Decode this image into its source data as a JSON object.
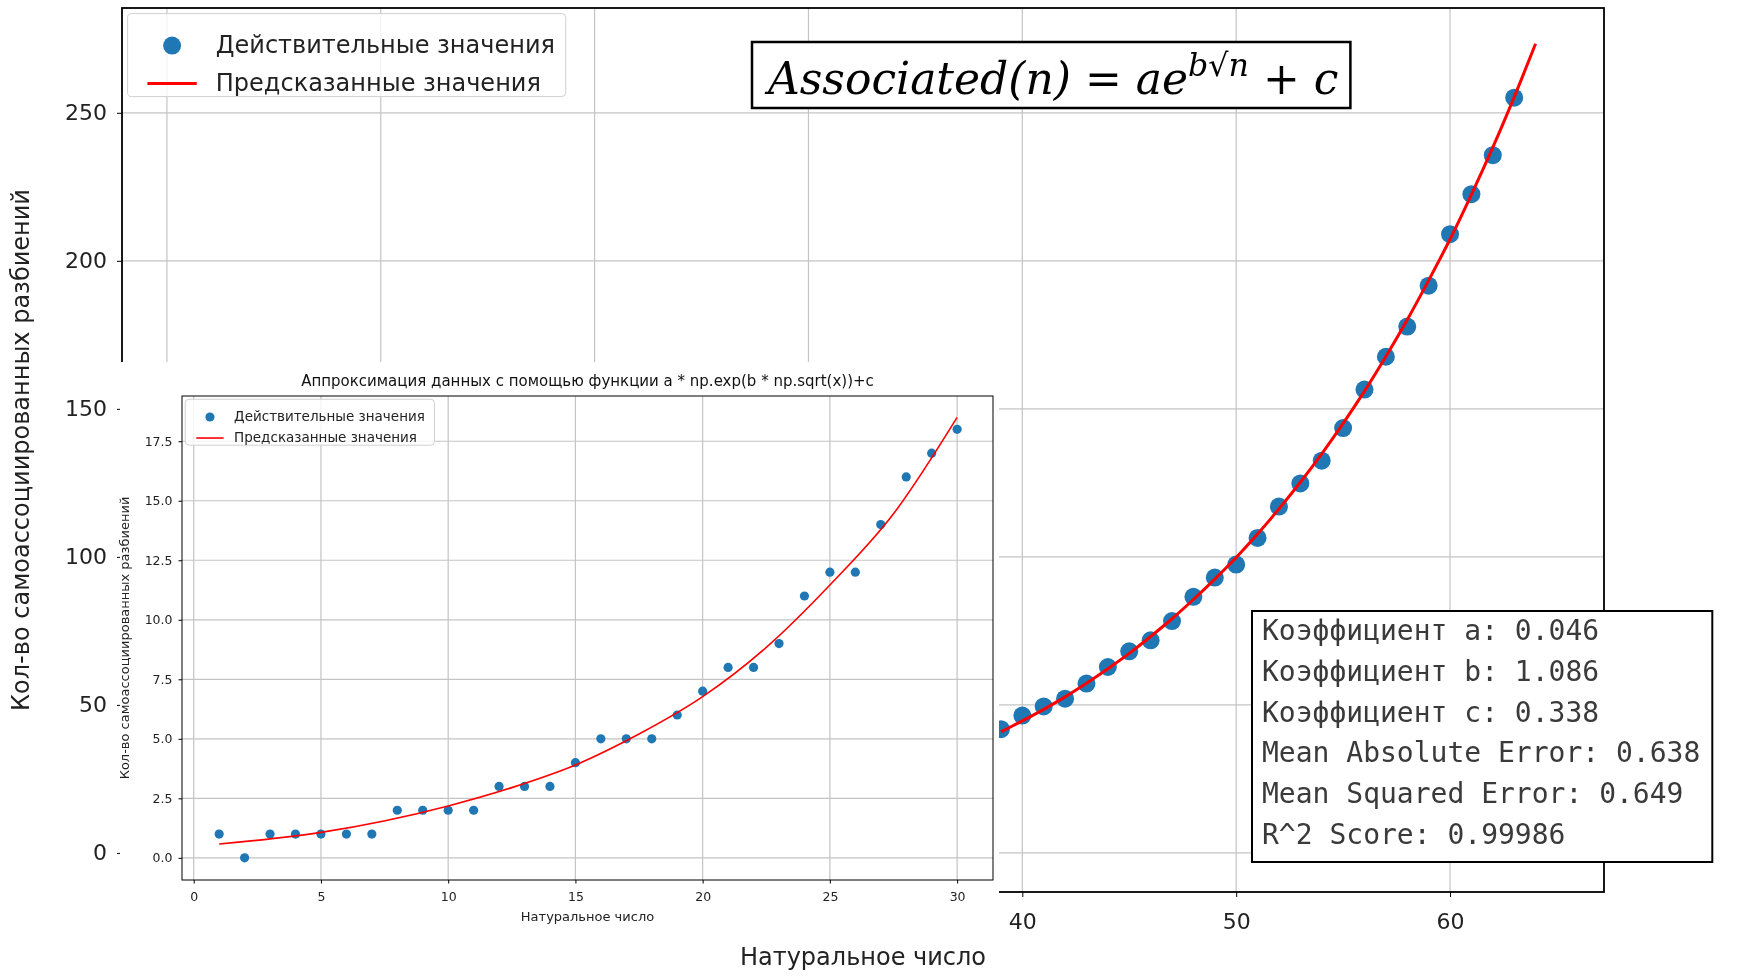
{
  "chart_data": [
    {
      "type": "scatter",
      "xlabel": "Натуральное число",
      "ylabel": "Кол-во самоассоциированных разбиений",
      "xlim": [
        -2.1,
        67.2
      ],
      "ylim": [
        -13.2,
        285.4
      ],
      "xticks": [
        {
          "value": 0,
          "label": null
        },
        {
          "value": 10,
          "label": null
        },
        {
          "value": 20,
          "label": null
        },
        {
          "value": 30,
          "label": null
        },
        40,
        50,
        60
      ],
      "yticks": [
        0,
        50,
        100,
        150,
        200,
        250
      ],
      "grid": true,
      "legend": "top left",
      "annotations": [
        "Associated(n) = ae$^{b√n}$ + c",
        "Коэффициент a: 0.046",
        "Коэффициент b: 1.086",
        "Коэффициент c: 0.338",
        "Mean Absolute Error: 0.638",
        "Mean Squared Error: 0.649",
        "R^2 Score: 0.99986"
      ],
      "series": [
        {
          "name": "Действительные значения",
          "color": "#1f77b4",
          "x": [
            39,
            40,
            41,
            42,
            43,
            44,
            45,
            46,
            47,
            48,
            49,
            50,
            51,
            52,
            53,
            54,
            55,
            56,
            57,
            58,
            59,
            60,
            61,
            62,
            63
          ],
          "values": [
            41.8,
            46.4,
            49.5,
            52.1,
            57.2,
            62.8,
            68.1,
            71.8,
            78.3,
            86.5,
            93.0,
            97.4,
            106.4,
            117.0,
            124.8,
            132.5,
            143.5,
            156.5,
            167.6,
            177.8,
            191.6,
            209.0,
            222.5,
            235.7,
            255.1
          ]
        },
        {
          "name": "Предсказанные значения",
          "type": "line",
          "color": "#ff0000",
          "x": [
            39,
            40,
            41,
            42,
            43,
            44,
            45,
            46,
            47,
            48,
            49,
            50,
            51,
            52,
            53,
            54,
            55,
            56,
            57,
            58,
            59,
            60,
            61,
            62,
            63,
            64
          ],
          "values": [
            40.9,
            44.6,
            48.5,
            52.7,
            57.3,
            62.2,
            67.4,
            73.1,
            79.1,
            85.6,
            92.5,
            99.8,
            107.7,
            116.2,
            125.2,
            134.8,
            145.1,
            156.0,
            167.7,
            180.1,
            193.4,
            207.3,
            222.4,
            238.3,
            255.3,
            273.3
          ]
        }
      ]
    },
    {
      "type": "scatter",
      "title": "Аппроксимация данных с помощью функции a * np.exp(b * np.sqrt(x))+c",
      "xlabel": "Натуральное число",
      "ylabel": "Кол-во самоассоциированных разбиений",
      "xlim": [
        -0.46,
        31.41
      ],
      "ylim": [
        -0.93,
        19.4
      ],
      "xticks": [
        0,
        5,
        10,
        15,
        20,
        25,
        30
      ],
      "yticks": [
        {
          "value": 0,
          "label": "0.0"
        },
        2.5,
        {
          "value": 5,
          "label": "5.0"
        },
        7.5,
        {
          "value": 10,
          "label": "10.0"
        },
        12.5,
        {
          "value": 15,
          "label": "15.0"
        },
        17.5
      ],
      "grid": true,
      "legend": "top left",
      "series": [
        {
          "name": "Действительные значения",
          "color": "#1f77b4",
          "x": [
            1,
            2,
            3,
            4,
            5,
            6,
            7,
            8,
            9,
            10,
            11,
            12,
            13,
            14,
            15,
            16,
            17,
            18,
            19,
            20,
            21,
            22,
            23,
            24,
            25,
            26,
            27,
            28,
            29,
            30
          ],
          "values": [
            1,
            0,
            1,
            1,
            1,
            1,
            1,
            2,
            2,
            2,
            2,
            3,
            3,
            3,
            4,
            5,
            5,
            5,
            6,
            7,
            8,
            8,
            9,
            11,
            12,
            12,
            14,
            16,
            17,
            18
          ]
        },
        {
          "name": "Предсказанные значения",
          "type": "line",
          "color": "#ff0000",
          "x": [
            1,
            5,
            10,
            12.5,
            15,
            17.5,
            20,
            22.5,
            25,
            27.5,
            30
          ],
          "values": [
            0.58,
            1.07,
            2.18,
            2.95,
            3.9,
            5.2,
            6.77,
            8.84,
            11.46,
            14.45,
            18.5
          ]
        }
      ]
    }
  ]
}
